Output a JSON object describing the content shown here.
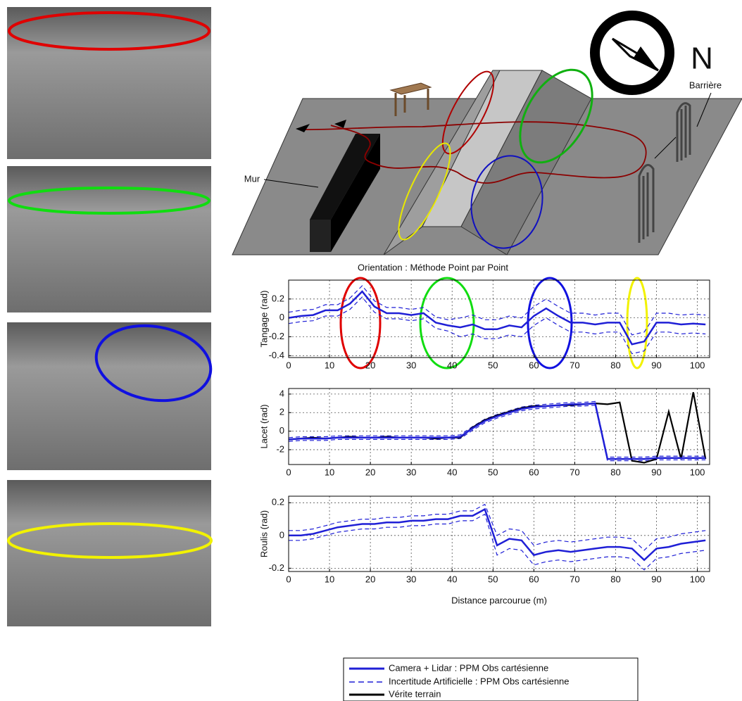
{
  "diagram": {
    "wall_label": "Mur",
    "barrier_label": "Barrière",
    "north_label": "N"
  },
  "chart_data": [
    {
      "type": "line",
      "title": "Orientation : Méthode Point par Point",
      "ylabel": "Tangage (rad)",
      "x": [
        0,
        3,
        6,
        9,
        12,
        15,
        18,
        21,
        24,
        27,
        30,
        33,
        36,
        39,
        42,
        45,
        48,
        51,
        54,
        57,
        60,
        63,
        66,
        69,
        72,
        75,
        78,
        81,
        84,
        87,
        90,
        93,
        96,
        99,
        102
      ],
      "xlim": [
        0,
        103
      ],
      "xticks": [
        0,
        10,
        20,
        30,
        40,
        50,
        60,
        70,
        80,
        90,
        100
      ],
      "ylim": [
        -0.42,
        0.4
      ],
      "yticks": [
        -0.4,
        -0.2,
        0,
        0.2
      ],
      "grid": true,
      "series": [
        {
          "name": "Camera + Lidar : PPM Obs cartésienne",
          "color": "#1f1fd6",
          "values": [
            0,
            0.02,
            0.03,
            0.08,
            0.08,
            0.15,
            0.28,
            0.12,
            0.05,
            0.05,
            0.03,
            0.05,
            -0.05,
            -0.08,
            -0.1,
            -0.07,
            -0.12,
            -0.12,
            -0.08,
            -0.1,
            0.02,
            0.1,
            0.02,
            -0.05,
            -0.05,
            -0.07,
            -0.05,
            -0.05,
            -0.28,
            -0.25,
            -0.05,
            -0.05,
            -0.07,
            -0.06,
            -0.07
          ]
        },
        {
          "name": "Incertitude Artificielle : PPM Obs cartésienne",
          "color": "#1f1fd6",
          "upper": [
            0.06,
            0.08,
            0.09,
            0.14,
            0.14,
            0.21,
            0.34,
            0.18,
            0.11,
            0.11,
            0.09,
            0.11,
            0.01,
            -0.02,
            0,
            0.03,
            -0.02,
            -0.02,
            0.02,
            0,
            0.12,
            0.2,
            0.12,
            0.05,
            0.05,
            0.03,
            0.05,
            0.05,
            -0.18,
            -0.15,
            0.05,
            0.05,
            0.03,
            0.04,
            0.03
          ],
          "lower": [
            -0.06,
            -0.04,
            -0.03,
            0.02,
            0.02,
            0.09,
            0.22,
            0.06,
            -0.01,
            -0.01,
            -0.03,
            -0.01,
            -0.11,
            -0.14,
            -0.2,
            -0.17,
            -0.22,
            -0.22,
            -0.18,
            -0.2,
            -0.08,
            0,
            -0.08,
            -0.15,
            -0.15,
            -0.17,
            -0.15,
            -0.15,
            -0.38,
            -0.35,
            -0.15,
            -0.15,
            -0.17,
            -0.16,
            -0.17
          ]
        }
      ]
    },
    {
      "type": "line",
      "ylabel": "Lacet (rad)",
      "x": [
        0,
        3,
        6,
        9,
        12,
        15,
        18,
        21,
        24,
        27,
        30,
        33,
        36,
        39,
        42,
        45,
        48,
        51,
        54,
        57,
        60,
        63,
        66,
        69,
        72,
        75,
        78,
        81,
        84,
        87,
        90,
        93,
        96,
        99,
        102
      ],
      "xlim": [
        0,
        103
      ],
      "xticks": [
        0,
        10,
        20,
        30,
        40,
        50,
        60,
        70,
        80,
        90,
        100
      ],
      "ylim": [
        -3.6,
        4.6
      ],
      "yticks": [
        -2,
        0,
        2,
        4
      ],
      "grid": true,
      "series": [
        {
          "color": "#1f1fd6",
          "values": [
            -0.9,
            -0.8,
            -0.8,
            -0.8,
            -0.7,
            -0.7,
            -0.7,
            -0.7,
            -0.7,
            -0.7,
            -0.7,
            -0.7,
            -0.7,
            -0.7,
            -0.6,
            0.3,
            1.1,
            1.6,
            2.0,
            2.4,
            2.6,
            2.7,
            2.8,
            2.9,
            2.9,
            3.0,
            -3.0,
            -3.0,
            -3.0,
            -3.0,
            -2.9,
            -2.9,
            -2.9,
            -2.9,
            -2.9
          ]
        },
        {
          "color": "#1f1fd6",
          "upper": [
            -0.7,
            -0.6,
            -0.6,
            -0.6,
            -0.5,
            -0.5,
            -0.5,
            -0.5,
            -0.5,
            -0.5,
            -0.5,
            -0.5,
            -0.5,
            -0.5,
            -0.4,
            0.5,
            1.3,
            1.8,
            2.2,
            2.6,
            2.8,
            2.9,
            3.0,
            3.1,
            3.1,
            3.2,
            -2.8,
            -2.8,
            -2.8,
            -2.8,
            -2.7,
            -2.7,
            -2.7,
            -2.7,
            -2.7
          ],
          "lower": [
            -1.1,
            -1.0,
            -1.0,
            -1.0,
            -0.9,
            -0.9,
            -0.9,
            -0.9,
            -0.9,
            -0.9,
            -0.9,
            -0.9,
            -0.9,
            -0.9,
            -0.8,
            0.1,
            0.9,
            1.4,
            1.8,
            2.2,
            2.4,
            2.5,
            2.6,
            2.7,
            2.7,
            2.8,
            -3.2,
            -3.2,
            -3.2,
            -3.2,
            -3.1,
            -3.1,
            -3.1,
            -3.1,
            -3.1
          ]
        },
        {
          "name": "Vérite terrain",
          "color": "#000000",
          "values": [
            -0.9,
            -0.8,
            -0.7,
            -0.8,
            -0.7,
            -0.6,
            -0.7,
            -0.7,
            -0.6,
            -0.7,
            -0.7,
            -0.7,
            -0.8,
            -0.7,
            -0.7,
            0.4,
            1.2,
            1.7,
            2.1,
            2.5,
            2.7,
            2.7,
            2.8,
            2.8,
            2.9,
            3.0,
            2.9,
            3.1,
            -3.2,
            -3.4,
            -3.0,
            2.1,
            -3.0,
            4.2,
            -3.0
          ]
        }
      ]
    },
    {
      "type": "line",
      "ylabel": "Roulis (rad)",
      "xlabel": "Distance parcourue (m)",
      "x": [
        0,
        3,
        6,
        9,
        12,
        15,
        18,
        21,
        24,
        27,
        30,
        33,
        36,
        39,
        42,
        45,
        48,
        51,
        54,
        57,
        60,
        63,
        66,
        69,
        72,
        75,
        78,
        81,
        84,
        87,
        90,
        93,
        96,
        99,
        102
      ],
      "xlim": [
        0,
        103
      ],
      "xticks": [
        0,
        10,
        20,
        30,
        40,
        50,
        60,
        70,
        80,
        90,
        100
      ],
      "ylim": [
        -0.22,
        0.24
      ],
      "yticks": [
        -0.2,
        0,
        0.2
      ],
      "grid": true,
      "series": [
        {
          "color": "#1f1fd6",
          "values": [
            0,
            0,
            0.01,
            0.03,
            0.05,
            0.06,
            0.07,
            0.07,
            0.08,
            0.08,
            0.09,
            0.09,
            0.1,
            0.1,
            0.12,
            0.12,
            0.16,
            -0.06,
            -0.02,
            -0.03,
            -0.12,
            -0.1,
            -0.09,
            -0.1,
            -0.09,
            -0.08,
            -0.07,
            -0.07,
            -0.08,
            -0.15,
            -0.08,
            -0.07,
            -0.05,
            -0.04,
            -0.03
          ]
        },
        {
          "color": "#1f1fd6",
          "upper": [
            0.03,
            0.03,
            0.04,
            0.06,
            0.08,
            0.09,
            0.1,
            0.1,
            0.11,
            0.11,
            0.12,
            0.12,
            0.13,
            0.13,
            0.15,
            0.15,
            0.19,
            0,
            0.04,
            0.03,
            -0.06,
            -0.04,
            -0.03,
            -0.04,
            -0.03,
            -0.02,
            -0.01,
            -0.01,
            -0.02,
            -0.09,
            -0.02,
            -0.01,
            0.01,
            0.02,
            0.03
          ],
          "lower": [
            -0.03,
            -0.03,
            -0.02,
            0,
            0.02,
            0.03,
            0.04,
            0.04,
            0.05,
            0.05,
            0.06,
            0.06,
            0.07,
            0.07,
            0.09,
            0.09,
            0.13,
            -0.12,
            -0.08,
            -0.09,
            -0.18,
            -0.16,
            -0.15,
            -0.16,
            -0.15,
            -0.14,
            -0.13,
            -0.13,
            -0.14,
            -0.21,
            -0.14,
            -0.13,
            -0.11,
            -0.1,
            -0.09
          ]
        }
      ]
    }
  ]
}
